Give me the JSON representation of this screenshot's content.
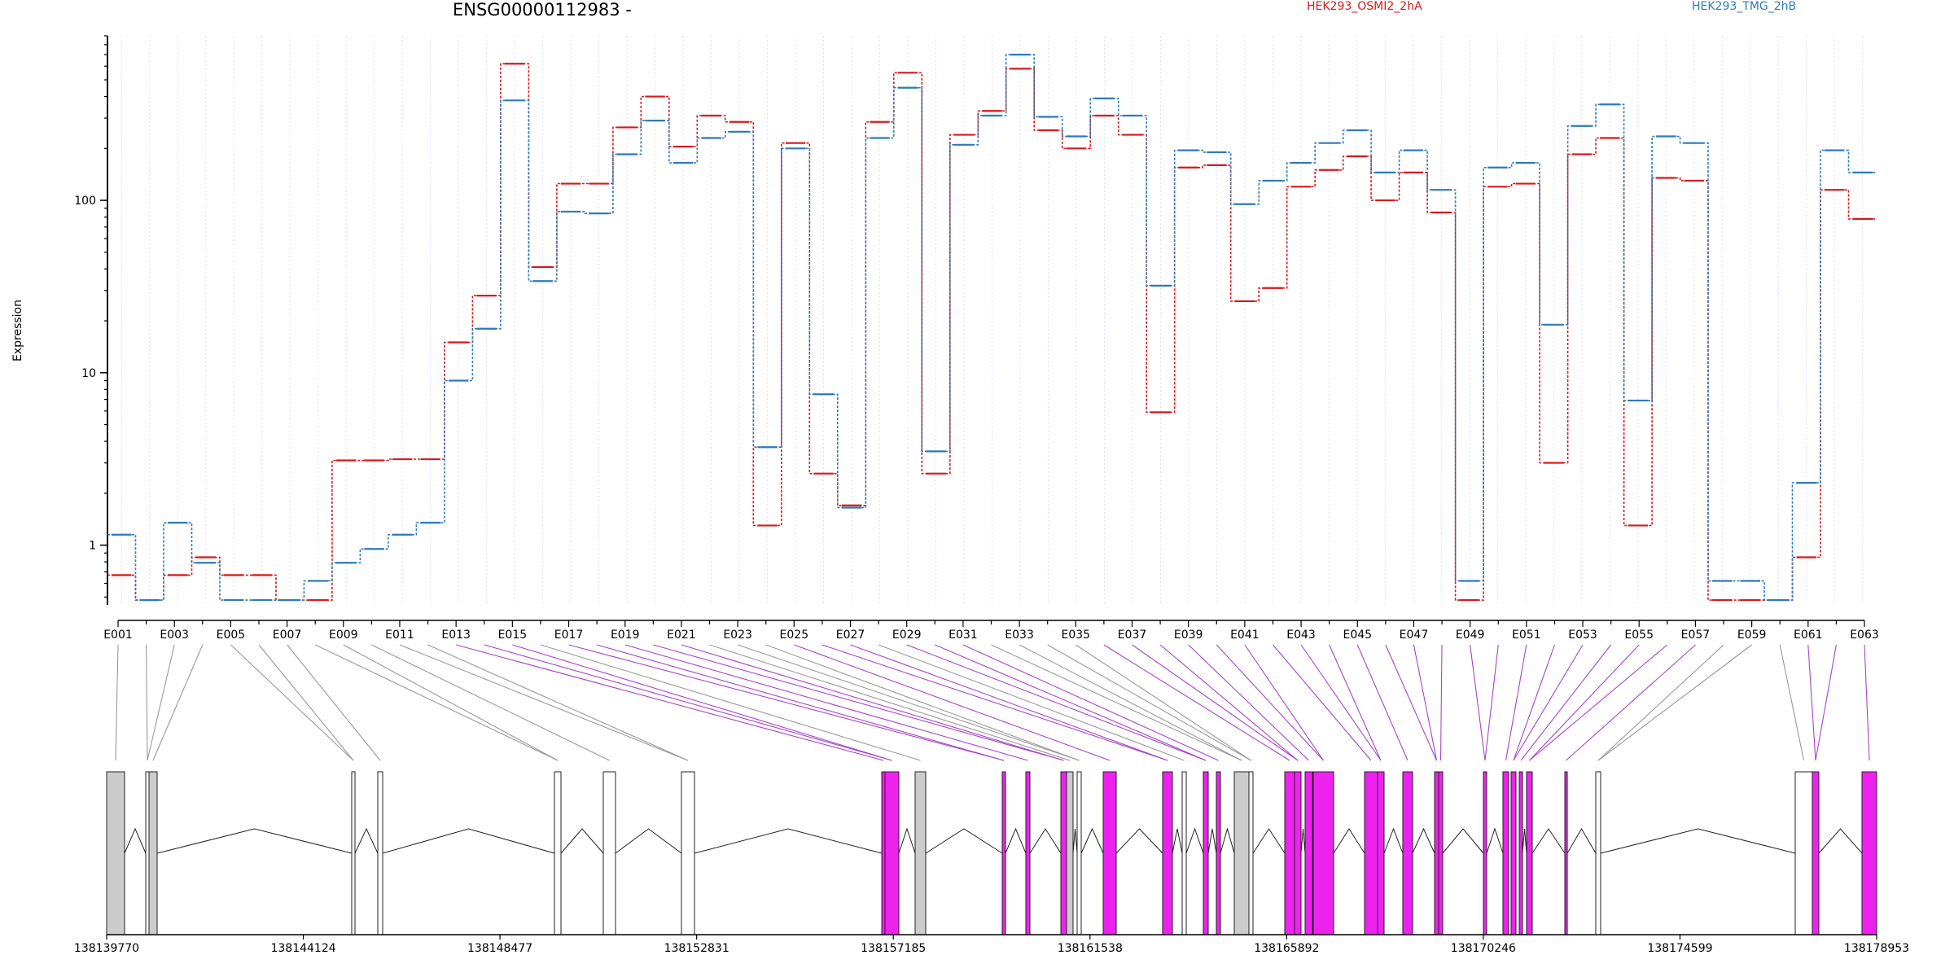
{
  "title": "ENSG00000112983 -",
  "ylabel": "Expression",
  "legend": [
    {
      "name": "HEK293_OSMI2_2hA",
      "color": "#d7191c"
    },
    {
      "name": "HEK293_TMG_2hB",
      "color": "#2c7bb6"
    }
  ],
  "colors": {
    "exon_gray": "#cccccc",
    "exon_magenta": "#ee22ee",
    "line_gray": "#999999",
    "line_purple": "#a844c9",
    "axis": "#000000",
    "grid": "#dde0f0"
  },
  "chart_data": {
    "type": "line",
    "xlabel": "",
    "ylabel": "Expression",
    "yscale": "log",
    "ylim": [
      0.45,
      900
    ],
    "yticks": [
      1,
      10,
      100
    ],
    "ytick_labels": [
      "1",
      "10",
      "100"
    ],
    "xtick_labels": [
      "E001",
      "E003",
      "E005",
      "E007",
      "E009",
      "E011",
      "E013",
      "E015",
      "E017",
      "E019",
      "E021",
      "E023",
      "E025",
      "E027",
      "E029",
      "E031",
      "E033",
      "E035",
      "E037",
      "E039",
      "E041",
      "E043",
      "E045",
      "E047",
      "E049",
      "E051",
      "E053",
      "E055",
      "E057",
      "E059",
      "E061",
      "E063"
    ],
    "categories": [
      "E001",
      "E002",
      "E003",
      "E004",
      "E005",
      "E006",
      "E007",
      "E008",
      "E009",
      "E010",
      "E011",
      "E012",
      "E013",
      "E014",
      "E015",
      "E016",
      "E017",
      "E018",
      "E019",
      "E020",
      "E021",
      "E022",
      "E023",
      "E024",
      "E025",
      "E026",
      "E027",
      "E028",
      "E029",
      "E030",
      "E031",
      "E032",
      "E033",
      "E034",
      "E035",
      "E036",
      "E037",
      "E038",
      "E039",
      "E040",
      "E041",
      "E042",
      "E043",
      "E044",
      "E045",
      "E046",
      "E047",
      "E048",
      "E049",
      "E050",
      "E051",
      "E052",
      "E053",
      "E054",
      "E055",
      "E056",
      "E057",
      "E058",
      "E059",
      "E060",
      "E061",
      "E062",
      "E063"
    ],
    "series": [
      {
        "name": "HEK293_OSMI2_2hA",
        "color": "#d7191c",
        "values": [
          0.67,
          0.48,
          0.67,
          0.85,
          0.67,
          0.67,
          0.48,
          0.48,
          3.1,
          3.1,
          3.15,
          3.15,
          15,
          28,
          620,
          41,
          125,
          125,
          265,
          400,
          205,
          310,
          285,
          1.3,
          215,
          2.6,
          1.7,
          285,
          550,
          2.6,
          240,
          330,
          580,
          255,
          200,
          310,
          240,
          5.9,
          155,
          160,
          26,
          31,
          120,
          150,
          180,
          100,
          145,
          85,
          0.48,
          120,
          125,
          3.0,
          185,
          230,
          1.3,
          135,
          130,
          0.48,
          0.48,
          0.48,
          0.85,
          115,
          78
        ]
      },
      {
        "name": "HEK293_TMG_2hB",
        "color": "#2c7bb6",
        "values": [
          1.15,
          0.48,
          1.35,
          0.79,
          0.48,
          0.48,
          0.48,
          0.62,
          0.79,
          0.95,
          1.15,
          1.35,
          9.0,
          18,
          380,
          34,
          86,
          84,
          185,
          290,
          165,
          230,
          250,
          3.7,
          200,
          7.5,
          1.65,
          230,
          450,
          3.5,
          210,
          310,
          700,
          305,
          235,
          390,
          310,
          32,
          195,
          190,
          95,
          130,
          165,
          215,
          255,
          145,
          195,
          115,
          0.62,
          155,
          165,
          19,
          270,
          360,
          6.9,
          235,
          215,
          0.62,
          0.62,
          0.48,
          2.3,
          195,
          145
        ]
      }
    ]
  },
  "genomic_axis": {
    "tick_labels": [
      "138139770",
      "138144124",
      "138148477",
      "138152831",
      "138157185",
      "138161538",
      "138165892",
      "138170246",
      "138174599",
      "138178953"
    ]
  }
}
